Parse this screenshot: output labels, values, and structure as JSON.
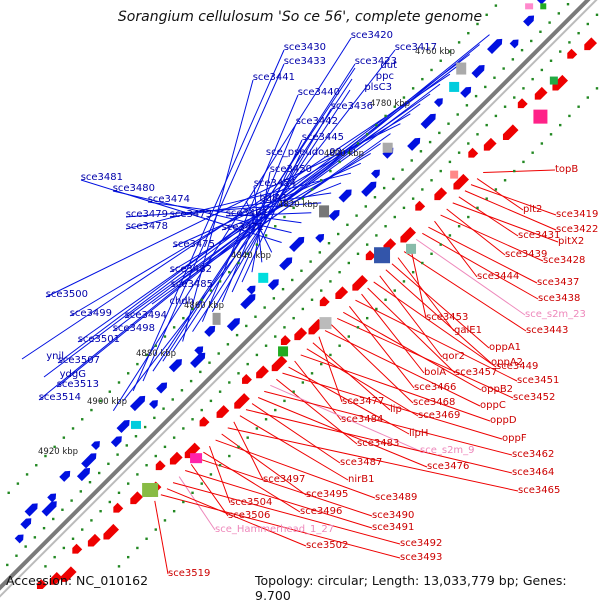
{
  "title": "Sorangium cellulosum 'So ce 56', complete genome",
  "accession": "Accession: NC_010162",
  "topology": "Topology: circular; Length: 13,033,779 bp; Genes: 9,700",
  "colors": {
    "backbone": "#7a7a7a",
    "forward_feature": "#0010e0",
    "reverse_feature": "#ee0000",
    "left_label": "#0000aa",
    "right_label": "#cc0000",
    "rna_label": "#ee88bb",
    "ticks": "#228822"
  },
  "scale_labels": [
    "4760 kbp",
    "4780 kbp",
    "4800 kbp",
    "4820 kbp",
    "4840 kbp",
    "4860 kbp",
    "4880 kbp",
    "4900 kbp",
    "4920 kbp"
  ],
  "left_genes": [
    "sce3420",
    "sce3417",
    "sce3430",
    "sce3433",
    "dut",
    "sce3423",
    "ppc",
    "sce3441",
    "plsC3",
    "sce3440",
    "sce3436",
    "sce3442",
    "sce3445",
    "sce_pseudo_03",
    "sce3450",
    "sce3454",
    "bglA1",
    "sce3481",
    "sce3480",
    "sce3474",
    "sce3467",
    "sce3479",
    "sce3473",
    "sce3472",
    "sce3478",
    "sce3475",
    "sce3482",
    "sce3485",
    "chdh",
    "sce3500",
    "sce3499",
    "sce3494",
    "sce3501",
    "sce3498",
    "ynil",
    "ydgG",
    "sce3507",
    "sce3513",
    "sce3514"
  ],
  "right_genes": [
    "topB",
    "pit2",
    "sce3419",
    "sce3422",
    "sce3431",
    "pitX2",
    "sce3439",
    "sce3428",
    "sce3444",
    "sce3437",
    "sce3438",
    "sce_s2m_23",
    "sce3453",
    "sce3443",
    "galE1",
    "oppA1",
    "oppA2",
    "qor2",
    "sce3449",
    "sce3457",
    "bolA",
    "sce3451",
    "sce3466",
    "oppB2",
    "sce3452",
    "sce3468",
    "oppC",
    "sce3477",
    "lip",
    "sce3469",
    "oppD",
    "sce3484",
    "lipH",
    "oppF",
    "sce3483",
    "sce_s2m_9",
    "sce3462",
    "sce3476",
    "sce3487",
    "sce3464",
    "nirB1",
    "sce3497",
    "sce3465",
    "sce3495",
    "sce3489",
    "sce3504",
    "sce3496",
    "sce3490",
    "sce3506",
    "sce3491",
    "sce_Hammerhead_1_27",
    "sce3492",
    "sce3502",
    "sce3493",
    "sce3519"
  ]
}
